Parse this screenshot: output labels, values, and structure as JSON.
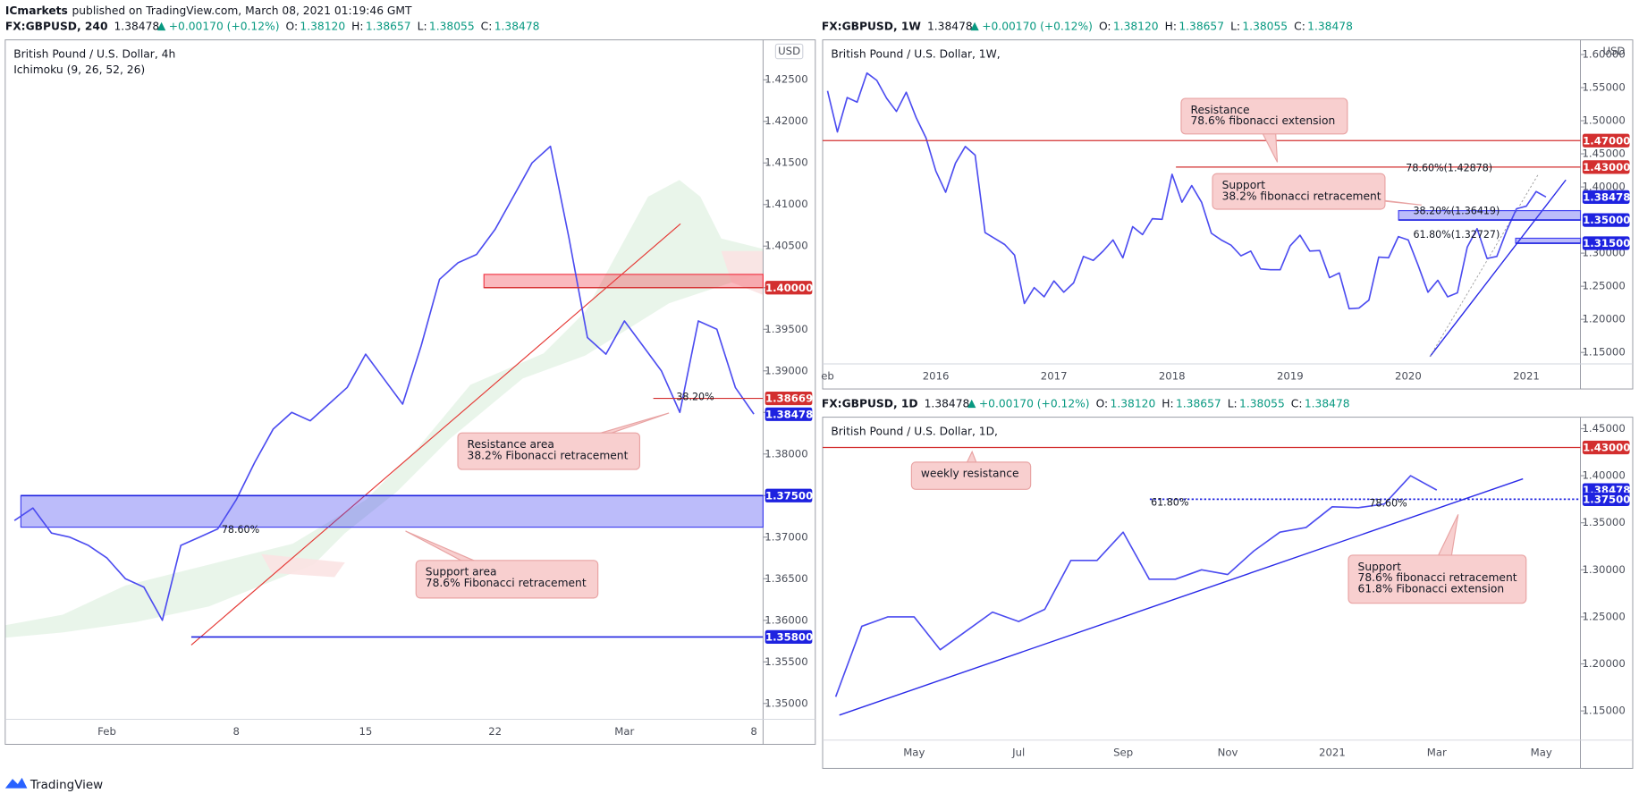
{
  "header": {
    "publisher": "ICmarkets",
    "text": "published on TradingView.com, March 08, 2021 01:19:46 GMT"
  },
  "footer": {
    "brand": "TradingView"
  },
  "chart_data": [
    {
      "type": "line",
      "symbol": "FX:GBPUSD, 240",
      "last": "1.38478",
      "change": "+0.00170 (+0.12%)",
      "ohlc": [
        {
          "label": "O:",
          "value": "1.38120"
        },
        {
          "label": "H:",
          "value": "1.38657"
        },
        {
          "label": "L:",
          "value": "1.38055"
        },
        {
          "label": "C:",
          "value": "1.38478"
        }
      ],
      "title": "British Pound / U.S. Dollar, 4h",
      "indicator": "Ichimoku (9, 26, 52, 26)",
      "currency": "USD",
      "color": "#4c4cf0",
      "categories": [
        null,
        null,
        null,
        null,
        null,
        "Feb",
        null,
        null,
        null,
        null,
        null,
        null,
        "8",
        null,
        null,
        null,
        null,
        null,
        null,
        "15",
        null,
        null,
        null,
        null,
        null,
        null,
        "22",
        null,
        null,
        null,
        null,
        null,
        null,
        "Mar",
        null,
        null,
        null,
        null,
        null,
        null,
        "8"
      ],
      "values": [
        1.372,
        1.3735,
        1.3705,
        1.37,
        1.369,
        1.3675,
        1.365,
        1.364,
        1.36,
        1.369,
        1.37,
        1.371,
        1.3745,
        1.379,
        1.383,
        1.385,
        1.384,
        1.386,
        1.388,
        1.392,
        1.389,
        1.386,
        1.393,
        1.401,
        1.403,
        1.404,
        1.407,
        1.411,
        1.415,
        1.417,
        1.406,
        1.394,
        1.392,
        1.396,
        1.393,
        1.39,
        1.385,
        1.396,
        1.395,
        1.388,
        1.3848
      ],
      "ylim": [
        1.3481,
        1.4298
      ],
      "yticks": [
        {
          "value": 1.35,
          "label": "1.35000"
        },
        {
          "value": 1.355,
          "label": "1.35500"
        },
        {
          "value": 1.36,
          "label": "1.36000"
        },
        {
          "value": 1.365,
          "label": "1.36500"
        },
        {
          "value": 1.37,
          "label": "1.37000"
        },
        {
          "value": 1.375,
          "label": "1.37500"
        },
        {
          "value": 1.38,
          "label": "1.38000"
        },
        {
          "value": 1.385,
          "label": "1.38500"
        },
        {
          "value": 1.39,
          "label": "1.39000"
        },
        {
          "value": 1.395,
          "label": "1.39500"
        },
        {
          "value": 1.4,
          "label": "1.40000"
        },
        {
          "value": 1.405,
          "label": "1.40500"
        },
        {
          "value": 1.41,
          "label": "1.41000"
        },
        {
          "value": 1.415,
          "label": "1.41500"
        },
        {
          "value": 1.42,
          "label": "1.42000"
        },
        {
          "value": 1.425,
          "label": "1.42500"
        }
      ],
      "grid": false,
      "levels": [
        {
          "value": 1.4,
          "label": "1.40000",
          "color": "#d32f2f"
        },
        {
          "value": 1.38669,
          "label": "1.38669",
          "color": "#d32f2f"
        },
        {
          "value": 1.38478,
          "label": "1.38478",
          "color": "#1e22e0"
        },
        {
          "value": 1.375,
          "label": "1.37500",
          "color": "#1e22e0"
        },
        {
          "value": 1.358,
          "label": "1.35800",
          "color": "#1e22e0"
        }
      ],
      "zones": [
        {
          "from": 1.3712,
          "to": 1.375,
          "color": "#3f3ff0"
        },
        {
          "from": 1.4,
          "to": 1.4016,
          "color": "#f23645"
        }
      ],
      "annotations": [
        {
          "lines": [
            "Resistance area",
            "38.2% Fibonacci retracement"
          ]
        },
        {
          "lines": [
            "Support area",
            "78.6% Fibonacci retracement"
          ]
        }
      ],
      "fib_labels": [
        {
          "text": "38.20%",
          "color": "#2962ff"
        },
        {
          "text": "78.60%",
          "color": "#2962ff"
        }
      ]
    },
    {
      "type": "line",
      "symbol": "FX:GBPUSD, 1W",
      "last": "1.38478",
      "change": "+0.00170 (+0.12%)",
      "ohlc": [
        {
          "label": "O:",
          "value": "1.38120"
        },
        {
          "label": "H:",
          "value": "1.38657"
        },
        {
          "label": "L:",
          "value": "1.38055"
        },
        {
          "label": "C:",
          "value": "1.38478"
        }
      ],
      "title": "British Pound / U.S. Dollar, 1W,",
      "currency": "USD",
      "color": "#4c4cf0",
      "categories": [
        "eb",
        null,
        null,
        null,
        null,
        null,
        null,
        null,
        null,
        null,
        null,
        "2016",
        null,
        null,
        null,
        null,
        null,
        null,
        null,
        null,
        null,
        null,
        null,
        "2017",
        null,
        null,
        null,
        null,
        null,
        null,
        null,
        null,
        null,
        null,
        null,
        "2018",
        null,
        null,
        null,
        null,
        null,
        null,
        null,
        null,
        null,
        null,
        null,
        "2019",
        null,
        null,
        null,
        null,
        null,
        null,
        null,
        null,
        null,
        null,
        null,
        "2020",
        null,
        null,
        null,
        null,
        null,
        null,
        null,
        null,
        null,
        null,
        null,
        "2021",
        null,
        null,
        null,
        null,
        null
      ],
      "values": [
        1.545,
        1.483,
        1.535,
        1.528,
        1.572,
        1.561,
        1.534,
        1.514,
        1.543,
        1.505,
        1.474,
        1.424,
        1.392,
        1.436,
        1.461,
        1.448,
        1.331,
        1.322,
        1.313,
        1.297,
        1.224,
        1.248,
        1.234,
        1.258,
        1.241,
        1.255,
        1.295,
        1.289,
        1.303,
        1.32,
        1.293,
        1.34,
        1.328,
        1.352,
        1.351,
        1.419,
        1.377,
        1.402,
        1.377,
        1.33,
        1.32,
        1.312,
        1.296,
        1.303,
        1.276,
        1.275,
        1.275,
        1.311,
        1.327,
        1.303,
        1.304,
        1.263,
        1.27,
        1.216,
        1.217,
        1.229,
        1.294,
        1.293,
        1.325,
        1.32,
        1.282,
        1.241,
        1.259,
        1.234,
        1.24,
        1.309,
        1.337,
        1.292,
        1.295,
        1.334,
        1.367,
        1.371,
        1.393,
        1.3848,
        null,
        null,
        null
      ],
      "ylim": [
        1.1327,
        1.6221
      ],
      "yticks": [
        {
          "value": 1.15,
          "label": "1.15000"
        },
        {
          "value": 1.2,
          "label": "1.20000"
        },
        {
          "value": 1.25,
          "label": "1.25000"
        },
        {
          "value": 1.3,
          "label": "1.30000"
        },
        {
          "value": 1.4,
          "label": "1.40000"
        },
        {
          "value": 1.45,
          "label": "1.45000"
        },
        {
          "value": 1.5,
          "label": "1.50000"
        },
        {
          "value": 1.55,
          "label": "1.55000"
        },
        {
          "value": 1.6,
          "label": "1.60000"
        }
      ],
      "grid": false,
      "levels": [
        {
          "value": 1.47,
          "label": "1.47000",
          "color": "#d32f2f"
        },
        {
          "value": 1.43,
          "label": "1.43000",
          "color": "#d32f2f"
        },
        {
          "value": 1.38478,
          "label": "1.38478",
          "color": "#1e22e0"
        },
        {
          "value": 1.35,
          "label": "1.35000",
          "color": "#1e22e0"
        },
        {
          "value": 1.315,
          "label": "1.31500",
          "color": "#1e22e0"
        }
      ],
      "zones": [
        {
          "from": 1.35,
          "to": 1.3642,
          "color": "#3f3ff0"
        },
        {
          "from": 1.315,
          "to": 1.3225,
          "color": "#3f3ff0"
        }
      ],
      "annotations": [
        {
          "lines": [
            "Resistance",
            "78.6% fibonacci extension"
          ]
        },
        {
          "lines": [
            "Support",
            "38.2% fibonacci retracement"
          ]
        }
      ],
      "fib_labels": [
        {
          "text": "78.60%(1.42878)",
          "color": "#2196f3"
        },
        {
          "text": "38.20%(1.36419)",
          "color": "#2962ff"
        },
        {
          "text": "61.80%(1.32727)",
          "color": "#c79a00"
        }
      ]
    },
    {
      "type": "line",
      "symbol": "FX:GBPUSD, 1D",
      "last": "1.38478",
      "change": "+0.00170 (+0.12%)",
      "ohlc": [
        {
          "label": "O:",
          "value": "1.38120"
        },
        {
          "label": "H:",
          "value": "1.38657"
        },
        {
          "label": "L:",
          "value": "1.38055"
        },
        {
          "label": "C:",
          "value": "1.38478"
        }
      ],
      "title": "British Pound / U.S. Dollar, 1D,",
      "color": "#4c4cf0",
      "categories": [
        null,
        null,
        null,
        "May",
        null,
        null,
        null,
        "Jul",
        null,
        null,
        null,
        "Sep",
        null,
        null,
        null,
        "Nov",
        null,
        null,
        null,
        "2021",
        null,
        null,
        null,
        "Mar",
        null,
        null,
        null,
        "May",
        null
      ],
      "values": [
        1.165,
        1.24,
        1.25,
        1.25,
        1.215,
        1.235,
        1.255,
        1.245,
        1.258,
        1.31,
        1.31,
        1.34,
        1.29,
        1.29,
        1.3,
        1.295,
        1.32,
        1.34,
        1.345,
        1.367,
        1.366,
        1.37,
        1.4,
        1.3848,
        null,
        null,
        null,
        null,
        null
      ],
      "ylim": [
        1.1189,
        1.4622
      ],
      "yticks": [
        {
          "value": 1.15,
          "label": "1.15000"
        },
        {
          "value": 1.2,
          "label": "1.20000"
        },
        {
          "value": 1.25,
          "label": "1.25000"
        },
        {
          "value": 1.3,
          "label": "1.30000"
        },
        {
          "value": 1.35,
          "label": "1.35000"
        },
        {
          "value": 1.4,
          "label": "1.40000"
        },
        {
          "value": 1.45,
          "label": "1.45000"
        }
      ],
      "grid": false,
      "levels": [
        {
          "value": 1.43,
          "label": "1.43000",
          "color": "#d32f2f"
        },
        {
          "value": 1.38478,
          "label": "1.38478",
          "color": "#1e22e0"
        },
        {
          "value": 1.375,
          "label": "1.37500",
          "color": "#1e22e0"
        }
      ],
      "zones": [],
      "annotations": [
        {
          "lines": [
            "weekly resistance"
          ]
        },
        {
          "lines": [
            "Support",
            "78.6% fibonacci retracement",
            "61.8% Fibonacci extension"
          ]
        }
      ],
      "fib_labels": [
        {
          "text": "61.80%",
          "color": "#a0305a"
        },
        {
          "text": "78.60%",
          "color": "#787b86"
        }
      ]
    }
  ]
}
